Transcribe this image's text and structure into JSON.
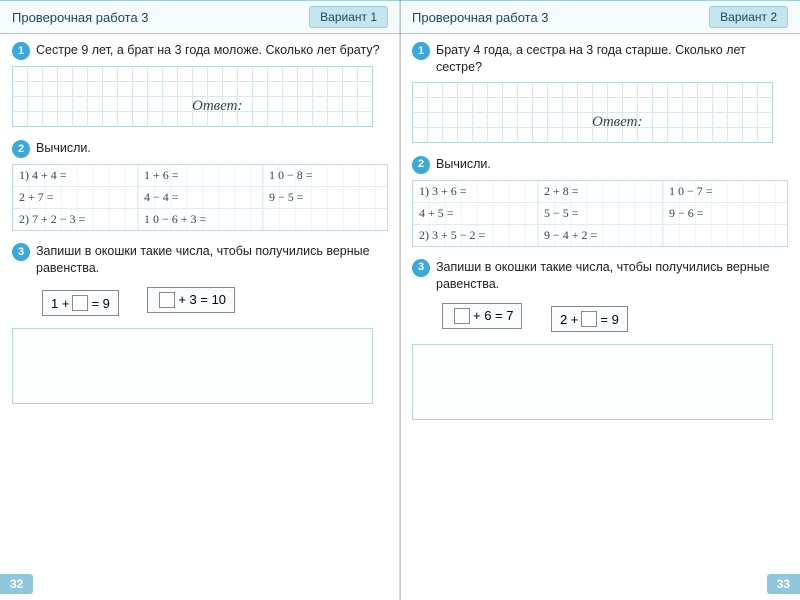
{
  "colors": {
    "header_bg": "#f5fbfd",
    "header_border": "#9fd0e0",
    "badge_bg": "#c6e4f0",
    "num_bg": "#3aa8d8",
    "grid_line": "#d8e8ef",
    "handwrite": "#2a4a5a",
    "pagenum_bg": "#8fc8dc"
  },
  "left": {
    "header": "Проверочная работа 3",
    "variant": "Вариант 1",
    "page_num": "32",
    "task1": {
      "num": "1",
      "text": "Сестре 9 лет, а брат на 3 года моложе. Сколько лет брату?",
      "answer_label": "Ответ:",
      "grid": {
        "cols": 24,
        "rows": 4,
        "cell": 15
      }
    },
    "task2": {
      "num": "2",
      "label": "Вычисли.",
      "rows": [
        [
          "1) 4 + 4 =",
          "1 + 6 =",
          "1 0 − 8 ="
        ],
        [
          "   2 + 7 =",
          "4 − 4 =",
          "9 − 5 ="
        ],
        [
          "2) 7 + 2 − 3 =",
          "1 0 − 6 + 3 =",
          ""
        ]
      ]
    },
    "task3": {
      "num": "3",
      "text": "Запиши в окошки такие числа, чтобы получились верные равенства.",
      "eq1": {
        "pre": "1 + ",
        "post": " = 9",
        "blank_first": false
      },
      "eq2": {
        "pre": "",
        "post": " + 3 = 10",
        "blank_first": true
      },
      "grid": {
        "cols": 24,
        "rows": 5,
        "cell": 15
      }
    }
  },
  "right": {
    "header": "Проверочная работа 3",
    "variant": "Вариант 2",
    "page_num": "33",
    "task1": {
      "num": "1",
      "text": "Брату 4 года, а сестра на 3 года старше. Сколько лет сестре?",
      "answer_label": "Ответ:",
      "grid": {
        "cols": 24,
        "rows": 4,
        "cell": 15
      }
    },
    "task2": {
      "num": "2",
      "label": "Вычисли.",
      "rows": [
        [
          "1) 3 + 6 =",
          "2 + 8 =",
          "1 0 − 7 ="
        ],
        [
          "   4 + 5 =",
          "5 − 5 =",
          "9 − 6 ="
        ],
        [
          "2) 3 + 5 − 2 =",
          "9 − 4 + 2 =",
          ""
        ]
      ]
    },
    "task3": {
      "num": "3",
      "text": "Запиши в окошки такие числа, чтобы получились верные равенства.",
      "eq1": {
        "pre": "",
        "post": " + 6 = 7",
        "blank_first": true
      },
      "eq2": {
        "pre": "2 + ",
        "post": " = 9",
        "blank_first": false
      },
      "grid": {
        "cols": 24,
        "rows": 5,
        "cell": 15
      }
    }
  }
}
